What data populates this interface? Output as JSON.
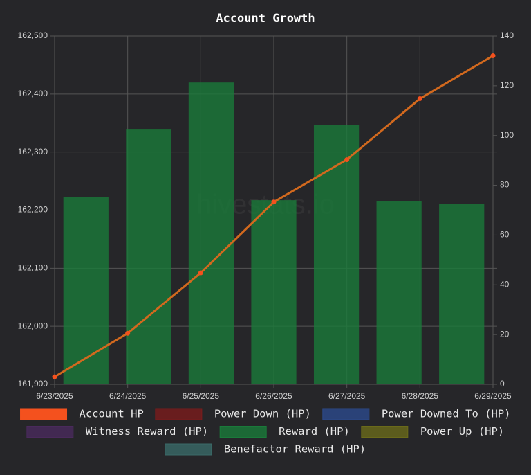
{
  "chart_data": {
    "type": "bar",
    "title": "Account Growth",
    "watermark": "hivestats.io",
    "categories": [
      "6/23/2025",
      "6/24/2025",
      "6/25/2025",
      "6/26/2025",
      "6/27/2025",
      "6/28/2025",
      "6/29/2025"
    ],
    "ylim": [
      161900,
      162500
    ],
    "yticks": [
      {
        "value": 161900,
        "label": "161,900"
      },
      {
        "value": 162000,
        "label": "162,000"
      },
      {
        "value": 162100,
        "label": "162,100"
      },
      {
        "value": 162200,
        "label": "162,200"
      },
      {
        "value": 162300,
        "label": "162,300"
      },
      {
        "value": 162400,
        "label": "162,400"
      },
      {
        "value": 162500,
        "label": "162,500"
      }
    ],
    "y2lim": [
      0,
      140
    ],
    "y2ticks": [
      0,
      20,
      40,
      60,
      80,
      100,
      120,
      140
    ],
    "grid": true,
    "legend": "bottom",
    "series": [
      {
        "name": "Account HP",
        "type": "line",
        "axis": "y",
        "color": "#f4511e",
        "values": [
          161913,
          161988,
          162092,
          162214,
          162287,
          162392,
          162466
        ]
      },
      {
        "name": "Power Down (HP)",
        "type": "bar",
        "axis": "y2",
        "color": "#7a1c1c",
        "values": [
          null,
          null,
          null,
          null,
          null,
          null,
          null
        ]
      },
      {
        "name": "Power Downed To (HP)",
        "type": "bar",
        "axis": "y2",
        "color": "#2c4a8c",
        "values": [
          null,
          null,
          null,
          null,
          null,
          null,
          null
        ]
      },
      {
        "name": "Witness Reward (HP)",
        "type": "bar",
        "axis": "y2",
        "color": "#4a2a5c",
        "values": [
          null,
          null,
          null,
          null,
          null,
          null,
          null
        ]
      },
      {
        "name": "Reward (HP)",
        "type": "bar",
        "axis": "y2",
        "color": "#1a7a3a",
        "values": [
          75.4,
          102.4,
          121.3,
          74.0,
          104.1,
          73.5,
          72.6
        ]
      },
      {
        "name": "Power Up (HP)",
        "type": "bar",
        "axis": "y2",
        "color": "#6a6a1a",
        "values": [
          null,
          null,
          null,
          null,
          null,
          null,
          null
        ]
      },
      {
        "name": "Benefactor Reward (HP)",
        "type": "bar",
        "axis": "y2",
        "color": "#3a6a68",
        "values": [
          null,
          null,
          null,
          null,
          null,
          null,
          null
        ]
      }
    ]
  }
}
